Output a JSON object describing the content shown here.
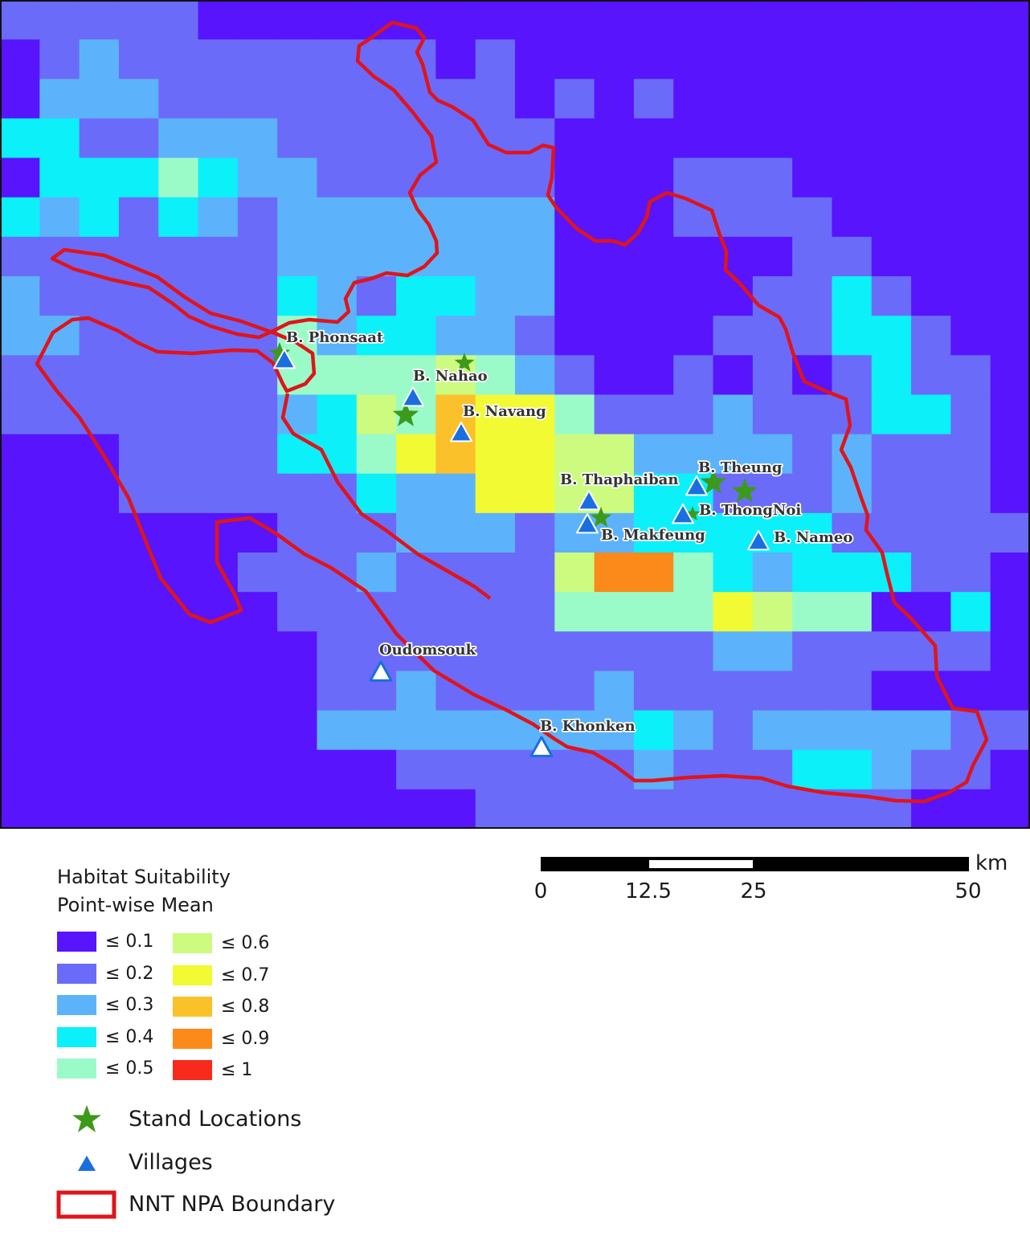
{
  "legend": {
    "title_line1": "Habitat Suitability",
    "title_line2": "Point-wise Mean",
    "classes": [
      {
        "label": "≤ 0.1",
        "color": "#5714FD"
      },
      {
        "label": "≤ 0.2",
        "color": "#6B6BFA"
      },
      {
        "label": "≤ 0.3",
        "color": "#5CB3FB"
      },
      {
        "label": "≤ 0.4",
        "color": "#0CF0FA"
      },
      {
        "label": "≤ 0.5",
        "color": "#9BFBC8"
      },
      {
        "label": "≤ 0.6",
        "color": "#CCFB80"
      },
      {
        "label": "≤ 0.7",
        "color": "#F2FA34"
      },
      {
        "label": "≤ 0.8",
        "color": "#FBC12B"
      },
      {
        "label": "≤ 0.9",
        "color": "#FB8A1A"
      },
      {
        "label": "≤ 1",
        "color": "#F72A1B"
      }
    ],
    "symbols": {
      "stand": {
        "label": "Stand Locations",
        "color": "#3C9A1A",
        "icon": "star-icon"
      },
      "village": {
        "label": "Villages",
        "color": "#1A6FE0",
        "icon": "triangle-icon"
      },
      "boundary": {
        "label": "NNT NPA Boundary",
        "color": "#E0141A",
        "icon": "rectangle-outline-icon"
      }
    }
  },
  "scale_bar": {
    "unit": "km",
    "ticks": [
      "0",
      "12.5",
      "25",
      "50"
    ]
  },
  "places": [
    {
      "name": "B. Phonsaat",
      "type": "village"
    },
    {
      "name": "B. Nahao",
      "type": "village"
    },
    {
      "name": "B. Navang",
      "type": "village"
    },
    {
      "name": "B. Thaphaiban",
      "type": "village"
    },
    {
      "name": "B. Makfeung",
      "type": "village"
    },
    {
      "name": "B. Theung",
      "type": "village"
    },
    {
      "name": "B. ThongNoi",
      "type": "village"
    },
    {
      "name": "B. Nameo",
      "type": "village"
    },
    {
      "name": "Oudomsouk",
      "type": "village"
    },
    {
      "name": "B. Khonken",
      "type": "village"
    }
  ]
}
